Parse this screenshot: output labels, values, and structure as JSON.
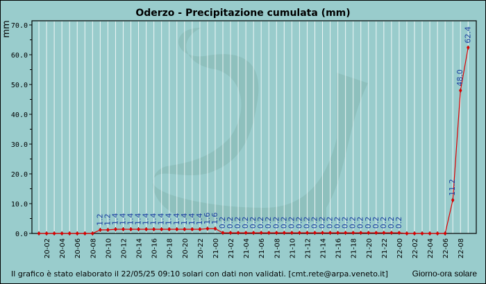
{
  "chart_data": {
    "type": "line",
    "title": "Oderzo - Precipitazione cumulata (mm)",
    "ylabel": "mm",
    "xlabel": "Giorno-ora solare",
    "ylim": [
      0,
      70
    ],
    "yticks": [
      "0.0",
      "10.0",
      "20.0",
      "30.0",
      "40.0",
      "50.0",
      "60.0",
      "70.0"
    ],
    "xtick_labels": [
      "20-02",
      "20-04",
      "20-06",
      "20-08",
      "20-10",
      "20-12",
      "20-14",
      "20-16",
      "20-18",
      "20-20",
      "20-22",
      "21-00",
      "21-02",
      "21-04",
      "21-06",
      "21-08",
      "21-10",
      "21-12",
      "21-14",
      "21-16",
      "21-18",
      "21-20",
      "21-22",
      "22-00",
      "22-02",
      "22-04",
      "22-06",
      "22-08"
    ],
    "series": [
      {
        "name": "Precipitazione cumulata",
        "color": "#dd0000",
        "values": [
          0,
          0,
          0,
          0,
          0,
          0,
          0,
          0,
          1.2,
          1.2,
          1.4,
          1.4,
          1.4,
          1.4,
          1.4,
          1.4,
          1.4,
          1.4,
          1.4,
          1.4,
          1.4,
          1.4,
          1.6,
          1.6,
          0.2,
          0.2,
          0.2,
          0.2,
          0.2,
          0.2,
          0.2,
          0.2,
          0.2,
          0.2,
          0.2,
          0.2,
          0.2,
          0.2,
          0.2,
          0.2,
          0.2,
          0.2,
          0.2,
          0.2,
          0.2,
          0.2,
          0.2,
          0.2,
          0,
          0,
          0,
          0,
          0,
          0,
          11.2,
          48.0,
          62.4
        ],
        "labels": [
          "",
          "",
          "",
          "",
          "",
          "",
          "",
          "",
          "1.2",
          "1.2",
          "1.4",
          "1.4",
          "1.4",
          "1.4",
          "1.4",
          "1.4",
          "1.4",
          "1.4",
          "1.4",
          "1.4",
          "1.4",
          "1.4",
          "1.6",
          "1.6",
          "0.2",
          "0.2",
          "0.2",
          "0.2",
          "0.2",
          "0.2",
          "0.2",
          "0.2",
          "0.2",
          "0.2",
          "0.2",
          "0.2",
          "0.2",
          "0.2",
          "0.2",
          "0.2",
          "0.2",
          "0.2",
          "0.2",
          "0.2",
          "0.2",
          "0.2",
          "0.2",
          "0.2",
          "",
          "",
          "",
          "",
          "",
          "",
          "11.2",
          "48.0",
          "62.4"
        ]
      }
    ],
    "grid": true
  },
  "footer": "Il grafico è stato elaborato il 22/05/25 09:10 solari con dati non validati. [cmt.rete@arpa.veneto.it]"
}
